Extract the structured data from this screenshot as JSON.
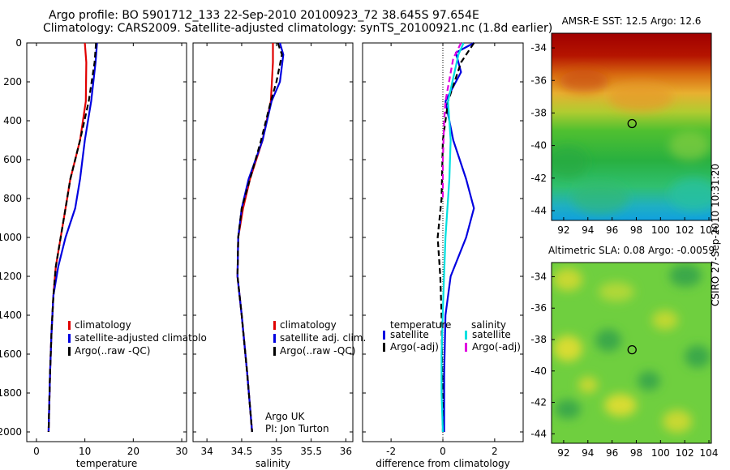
{
  "titles": {
    "line1": "Argo profile: BO 5901712_133 22-Sep-2010 20100923_72 38.645S 97.654E",
    "line2": "Climatology: CARS2009. Satellite-adjusted climatology: synTS_20100921.nc (1.8d earlier)",
    "side": "CSIRO 27-Sep-2010 10:31:20"
  },
  "chart_data": [
    {
      "type": "line",
      "xlabel": "temperature",
      "ylabel": "",
      "xlim": [
        -2,
        31
      ],
      "ylim": [
        0,
        2050
      ],
      "y_reversed": true,
      "xticks": [
        "0",
        "10",
        "20",
        "30"
      ],
      "yticks": [
        "0",
        "200",
        "400",
        "600",
        "800",
        "1000",
        "1200",
        "1400",
        "1600",
        "1800",
        "2000"
      ],
      "legend": [
        "climatology",
        "satellite-adjusted climatolo",
        "Argo(..raw -QC)"
      ],
      "series": [
        {
          "name": "climatology",
          "color": "#e00000",
          "style": "solid",
          "points": [
            [
              10,
              0
            ],
            [
              10.3,
              100
            ],
            [
              10.2,
              300
            ],
            [
              9,
              500
            ],
            [
              7,
              700
            ],
            [
              6,
              850
            ],
            [
              5,
              1000
            ],
            [
              4,
              1150
            ],
            [
              3.5,
              1300
            ],
            [
              3.1,
              1500
            ],
            [
              2.8,
              1700
            ],
            [
              2.6,
              1900
            ],
            [
              2.5,
              2000
            ]
          ]
        },
        {
          "name": "satellite-adjusted climatolo",
          "color": "#0000e0",
          "style": "solid",
          "points": [
            [
              12.5,
              0
            ],
            [
              12.2,
              100
            ],
            [
              11.3,
              300
            ],
            [
              10,
              500
            ],
            [
              9,
              700
            ],
            [
              8,
              850
            ],
            [
              6,
              1000
            ],
            [
              4.5,
              1150
            ],
            [
              3.5,
              1300
            ],
            [
              3.1,
              1500
            ],
            [
              2.8,
              1700
            ],
            [
              2.6,
              1900
            ],
            [
              2.5,
              2000
            ]
          ]
        },
        {
          "name": "Argo(..raw -QC)",
          "color": "#000000",
          "style": "dashed",
          "points": [
            [
              12.3,
              0
            ],
            [
              12,
              100
            ],
            [
              10.8,
              300
            ],
            [
              9,
              500
            ],
            [
              7,
              700
            ],
            [
              6,
              850
            ],
            [
              5,
              1000
            ],
            [
              4,
              1150
            ],
            [
              3.5,
              1300
            ],
            [
              3.1,
              1500
            ],
            [
              2.8,
              1700
            ],
            [
              2.6,
              1900
            ],
            [
              2.5,
              2000
            ]
          ]
        }
      ]
    },
    {
      "type": "line",
      "xlabel": "salinity",
      "xlim": [
        33.8,
        36.1
      ],
      "ylim": [
        0,
        2050
      ],
      "y_reversed": true,
      "xticks": [
        "34",
        "34.5",
        "35",
        "35.5",
        "36"
      ],
      "legend": [
        "climatology",
        "satellite adj. clim.",
        "Argo(..raw -QC)"
      ],
      "annotations": [
        "Argo UK",
        "PI: Jon Turton"
      ],
      "series": [
        {
          "name": "climatology",
          "color": "#e00000",
          "style": "solid",
          "points": [
            [
              34.95,
              0
            ],
            [
              34.95,
              100
            ],
            [
              34.92,
              300
            ],
            [
              34.8,
              500
            ],
            [
              34.62,
              700
            ],
            [
              34.52,
              850
            ],
            [
              34.45,
              1000
            ],
            [
              34.44,
              1200
            ],
            [
              34.5,
              1400
            ],
            [
              34.58,
              1700
            ],
            [
              34.65,
              2000
            ]
          ]
        },
        {
          "name": "satellite adj. clim.",
          "color": "#0000e0",
          "style": "solid",
          "points": [
            [
              35.05,
              0
            ],
            [
              35.1,
              60
            ],
            [
              35.05,
              200
            ],
            [
              34.93,
              300
            ],
            [
              34.8,
              500
            ],
            [
              34.6,
              700
            ],
            [
              34.5,
              850
            ],
            [
              34.45,
              1000
            ],
            [
              34.44,
              1200
            ],
            [
              34.5,
              1400
            ],
            [
              34.58,
              1700
            ],
            [
              34.65,
              2000
            ]
          ]
        },
        {
          "name": "Argo(..raw -QC)",
          "color": "#000000",
          "style": "dashed",
          "points": [
            [
              35.02,
              0
            ],
            [
              35.08,
              60
            ],
            [
              35,
              200
            ],
            [
              34.92,
              300
            ],
            [
              34.78,
              500
            ],
            [
              34.62,
              700
            ],
            [
              34.5,
              850
            ],
            [
              34.45,
              1000
            ],
            [
              34.44,
              1200
            ],
            [
              34.5,
              1400
            ],
            [
              34.58,
              1700
            ],
            [
              34.65,
              2000
            ]
          ]
        }
      ]
    },
    {
      "type": "line",
      "xlabel": "difference from climatology",
      "xlim": [
        -3.1,
        3.1
      ],
      "ylim": [
        0,
        2050
      ],
      "y_reversed": true,
      "xticks": [
        "-2",
        "0",
        "2"
      ],
      "legend_groups": [
        {
          "heading": "temperature",
          "items": [
            "satellite",
            "Argo(-adj)"
          ]
        },
        {
          "heading": "salinity",
          "items": [
            "satellite",
            "Argo(-adj)"
          ]
        }
      ],
      "series": [
        {
          "name": "temperature satellite",
          "color": "#0000e0",
          "style": "solid",
          "points": [
            [
              1.2,
              0
            ],
            [
              0.5,
              50
            ],
            [
              0.7,
              150
            ],
            [
              0.1,
              300
            ],
            [
              0.4,
              500
            ],
            [
              0.9,
              700
            ],
            [
              1.2,
              850
            ],
            [
              0.9,
              1000
            ],
            [
              0.3,
              1200
            ],
            [
              0.1,
              1400
            ],
            [
              0.05,
              1700
            ],
            [
              0.05,
              2000
            ]
          ]
        },
        {
          "name": "temperature Argo(-adj)",
          "color": "#000000",
          "style": "dashed",
          "points": [
            [
              1.2,
              0
            ],
            [
              0.7,
              100
            ],
            [
              0.2,
              300
            ],
            [
              0,
              500
            ],
            [
              -0.05,
              800
            ],
            [
              -0.2,
              1000
            ],
            [
              -0.1,
              1200
            ],
            [
              -0.05,
              1400
            ],
            [
              0,
              2000
            ]
          ]
        },
        {
          "name": "salinity satellite",
          "color": "#00e0e0",
          "style": "solid",
          "points": [
            [
              0.8,
              0
            ],
            [
              0.6,
              60
            ],
            [
              0.2,
              300
            ],
            [
              0.3,
              500
            ],
            [
              0.25,
              700
            ],
            [
              0.1,
              1000
            ],
            [
              0.02,
              1300
            ],
            [
              -0.05,
              1600
            ],
            [
              -0.05,
              1800
            ],
            [
              0,
              2000
            ]
          ]
        },
        {
          "name": "salinity Argo(-adj)",
          "color": "#e000e0",
          "style": "dashed",
          "points": [
            [
              0.7,
              0
            ],
            [
              0.4,
              80
            ],
            [
              0.1,
              300
            ],
            [
              0.05,
              400
            ],
            [
              0,
              600
            ],
            [
              0,
              800
            ]
          ]
        }
      ]
    },
    {
      "type": "heatmap",
      "title": "AMSR-E SST: 12.5 Argo: 12.6",
      "xlim": [
        91,
        104.2
      ],
      "ylim": [
        -44.6,
        -33.1
      ],
      "xticks": [
        "92",
        "94",
        "96",
        "98",
        "100",
        "102",
        "104"
      ],
      "yticks": [
        "-34",
        "-36",
        "-38",
        "-40",
        "-42",
        "-44"
      ],
      "marker": [
        97.65,
        -38.65
      ]
    },
    {
      "type": "heatmap",
      "title": "Altimetric SLA: 0.08 Argo: -0.0059",
      "xlim": [
        91,
        104.2
      ],
      "ylim": [
        -44.6,
        -33.1
      ],
      "xticks": [
        "92",
        "94",
        "96",
        "98",
        "100",
        "102",
        "104"
      ],
      "yticks": [
        "-34",
        "-36",
        "-38",
        "-40",
        "-42",
        "-44"
      ],
      "marker": [
        97.65,
        -38.65
      ]
    }
  ]
}
